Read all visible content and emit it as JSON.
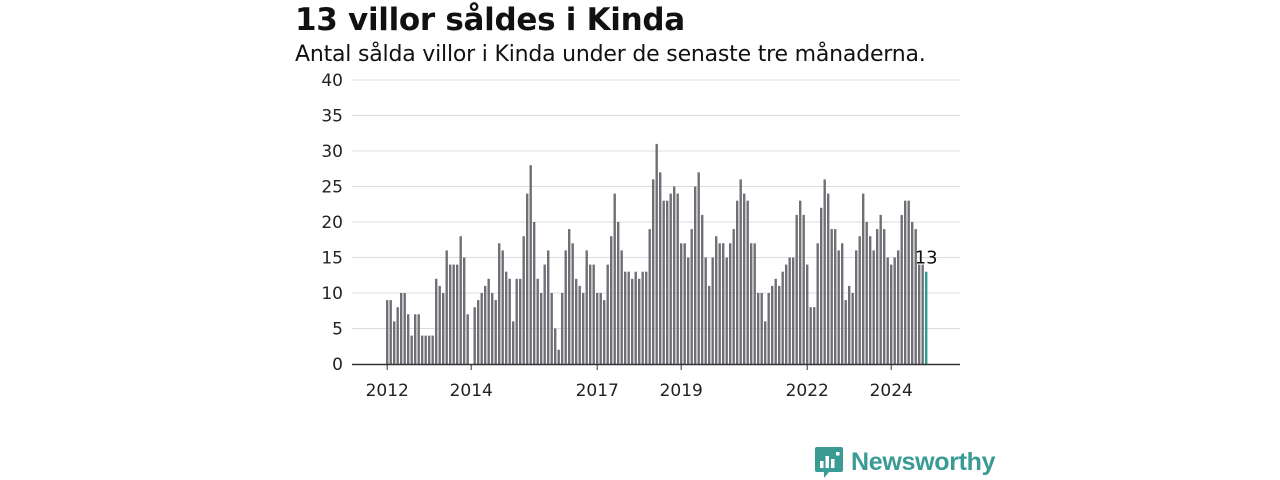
{
  "title": "13 villor såldes i Kinda",
  "subtitle": "Antal sålda villor i Kinda under de senaste tre månaderna.",
  "brand": {
    "name": "Newsworthy"
  },
  "colors": {
    "bar": "#6f6f76",
    "highlight": "#2a9d8f",
    "grid": "#dcdcdc",
    "axis": "#333333"
  },
  "chart_data": {
    "type": "bar",
    "title": "13 villor såldes i Kinda",
    "subtitle": "Antal sålda villor i Kinda under de senaste tre månaderna.",
    "xlabel": "",
    "ylabel": "",
    "ylim": [
      0,
      40
    ],
    "yticks": [
      0,
      5,
      10,
      15,
      20,
      25,
      30,
      35,
      40
    ],
    "xticks": [
      "2012",
      "2014",
      "2017",
      "2019",
      "2022",
      "2024"
    ],
    "grid": true,
    "annotation": "13",
    "values": [
      9,
      9,
      6,
      8,
      10,
      10,
      7,
      4,
      7,
      7,
      4,
      4,
      4,
      4,
      12,
      11,
      10,
      16,
      14,
      14,
      14,
      18,
      15,
      7,
      0,
      8,
      9,
      10,
      11,
      12,
      10,
      9,
      17,
      16,
      13,
      12,
      6,
      12,
      12,
      18,
      24,
      28,
      20,
      12,
      10,
      14,
      16,
      10,
      5,
      2,
      10,
      16,
      19,
      17,
      12,
      11,
      10,
      16,
      14,
      14,
      10,
      10,
      9,
      14,
      18,
      24,
      20,
      16,
      13,
      13,
      12,
      13,
      12,
      13,
      13,
      19,
      26,
      31,
      27,
      23,
      23,
      24,
      25,
      24,
      17,
      17,
      15,
      19,
      25,
      27,
      21,
      15,
      11,
      15,
      18,
      17,
      17,
      15,
      17,
      19,
      23,
      26,
      24,
      23,
      17,
      17,
      10,
      10,
      6,
      10,
      11,
      12,
      11,
      13,
      14,
      15,
      15,
      21,
      23,
      21,
      14,
      8,
      8,
      17,
      22,
      26,
      24,
      19,
      19,
      16,
      17,
      9,
      11,
      10,
      16,
      18,
      24,
      20,
      18,
      16,
      19,
      21,
      19,
      15,
      14,
      15,
      16,
      21,
      23,
      23,
      20,
      19,
      14,
      14,
      13
    ]
  }
}
